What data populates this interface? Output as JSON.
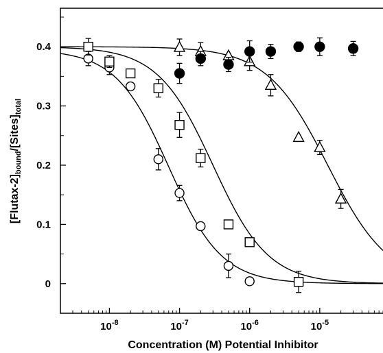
{
  "chart_data": {
    "type": "scatter",
    "xscale": "log",
    "xlim": [
      2e-09,
      0.0001
    ],
    "ylim": [
      -0.05,
      0.465
    ],
    "xlabel": "Concentration (M) Potential Inhibitor",
    "ylabel": {
      "parts": [
        {
          "text": "[Flutax-2]",
          "style": "normal"
        },
        {
          "text": "bound",
          "style": "sub"
        },
        {
          "text": "/[Sites]",
          "style": "normal"
        },
        {
          "text": "total",
          "style": "sub"
        }
      ]
    },
    "yticks": [
      {
        "value": 0,
        "label": "0"
      },
      {
        "value": 0.1,
        "label": "0.1"
      },
      {
        "value": 0.2,
        "label": "0.2"
      },
      {
        "value": 0.3,
        "label": "0.3"
      },
      {
        "value": 0.4,
        "label": "0.4"
      }
    ],
    "xticks": [
      {
        "value": 1e-08,
        "base": "10",
        "exp": "-8"
      },
      {
        "value": 1e-07,
        "base": "10",
        "exp": "-7"
      },
      {
        "value": 1e-06,
        "base": "10",
        "exp": "-6"
      },
      {
        "value": 1e-05,
        "base": "10",
        "exp": "-5"
      }
    ],
    "grid": false,
    "legend": "none",
    "series": [
      {
        "marker": "open-circle",
        "points": [
          {
            "x": 5e-09,
            "y": 0.38,
            "err": 0.012
          },
          {
            "x": 1e-08,
            "y": 0.365,
            "err": 0.012
          },
          {
            "x": 2e-08,
            "y": 0.333,
            "err": 0.0
          },
          {
            "x": 5e-08,
            "y": 0.21,
            "err": 0.018
          },
          {
            "x": 1e-07,
            "y": 0.153,
            "err": 0.013
          },
          {
            "x": 2e-07,
            "y": 0.097,
            "err": 0.0
          },
          {
            "x": 5e-07,
            "y": 0.03,
            "err": 0.02
          },
          {
            "x": 1e-06,
            "y": 0.004,
            "err": 0.0
          }
        ],
        "fit": {
          "top": 0.395,
          "bottom": 0.0,
          "ec50": 7e-08,
          "hill": 1.15
        }
      },
      {
        "marker": "open-square",
        "points": [
          {
            "x": 5e-09,
            "y": 0.4,
            "err": 0.014
          },
          {
            "x": 1e-08,
            "y": 0.375,
            "err": 0.01
          },
          {
            "x": 2e-08,
            "y": 0.355,
            "err": 0.0
          },
          {
            "x": 5e-08,
            "y": 0.33,
            "err": 0.015
          },
          {
            "x": 1e-07,
            "y": 0.268,
            "err": 0.021
          },
          {
            "x": 2e-07,
            "y": 0.212,
            "err": 0.015
          },
          {
            "x": 5e-07,
            "y": 0.1,
            "err": 0.0
          },
          {
            "x": 1e-06,
            "y": 0.07,
            "err": 0.0
          },
          {
            "x": 5e-06,
            "y": 0.003,
            "err": 0.018
          }
        ],
        "fit": {
          "top": 0.4,
          "bottom": 0.0,
          "ec50": 3e-07,
          "hill": 1.1
        }
      },
      {
        "marker": "open-triangle",
        "points": [
          {
            "x": 1e-07,
            "y": 0.399,
            "err": 0.014
          },
          {
            "x": 2e-07,
            "y": 0.392,
            "err": 0.015
          },
          {
            "x": 5e-07,
            "y": 0.385,
            "err": 0.0
          },
          {
            "x": 1e-06,
            "y": 0.375,
            "err": 0.015
          },
          {
            "x": 2e-06,
            "y": 0.335,
            "err": 0.018
          },
          {
            "x": 5e-06,
            "y": 0.247,
            "err": 0.0
          },
          {
            "x": 1e-05,
            "y": 0.23,
            "err": 0.012
          },
          {
            "x": 2e-05,
            "y": 0.143,
            "err": 0.016
          }
        ],
        "fit": {
          "top": 0.4,
          "bottom": 0.0,
          "ec50": 1.3e-05,
          "hill": 1.0
        }
      },
      {
        "marker": "filled-circle",
        "points": [
          {
            "x": 1e-07,
            "y": 0.355,
            "err": 0.017
          },
          {
            "x": 2e-07,
            "y": 0.38,
            "err": 0.012
          },
          {
            "x": 5e-07,
            "y": 0.37,
            "err": 0.012
          },
          {
            "x": 1e-06,
            "y": 0.392,
            "err": 0.018
          },
          {
            "x": 2e-06,
            "y": 0.392,
            "err": 0.012
          },
          {
            "x": 5e-06,
            "y": 0.4,
            "err": 0.008
          },
          {
            "x": 1e-05,
            "y": 0.4,
            "err": 0.015
          },
          {
            "x": 3e-05,
            "y": 0.397,
            "err": 0.012
          }
        ]
      }
    ],
    "colors": {
      "ink": "#000000",
      "background": "#ffffff"
    }
  }
}
